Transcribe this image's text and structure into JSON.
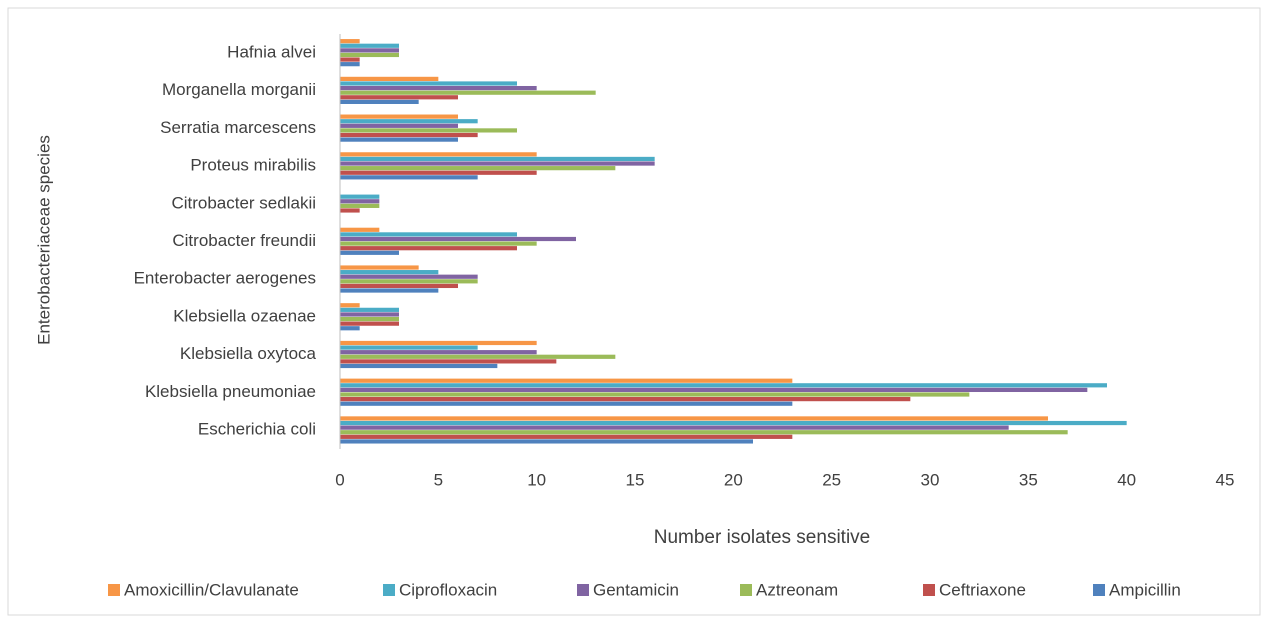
{
  "chart_data": {
    "type": "hbar",
    "xlabel": "Number isolates sensitive",
    "ylabel": "Enterobacteriaceae species",
    "categories": [
      "Escherichia coli",
      "Klebsiella pneumoniae",
      "Klebsiella oxytoca",
      "Klebsiella ozaenae",
      "Enterobacter aerogenes",
      "Citrobacter freundii",
      "Citrobacter sedlakii",
      "Proteus mirabilis",
      "Serratia marcescens",
      "Morganella morganii",
      "Hafnia alvei"
    ],
    "series": [
      {
        "name": "Amoxicillin/Clavulanate",
        "color": "#f79646",
        "values": [
          36,
          23,
          10,
          1,
          4,
          2,
          0,
          10,
          6,
          5,
          1
        ]
      },
      {
        "name": "Ciprofloxacin",
        "color": "#4bacc6",
        "values": [
          40,
          39,
          7,
          3,
          5,
          9,
          2,
          16,
          7,
          9,
          3
        ]
      },
      {
        "name": "Gentamicin",
        "color": "#8064a2",
        "values": [
          34,
          38,
          10,
          3,
          7,
          12,
          2,
          16,
          6,
          10,
          3
        ]
      },
      {
        "name": "Aztreonam",
        "color": "#9bbb59",
        "values": [
          37,
          32,
          14,
          3,
          7,
          10,
          2,
          14,
          9,
          13,
          3
        ]
      },
      {
        "name": "Ceftriaxone",
        "color": "#c0504d",
        "values": [
          23,
          29,
          11,
          3,
          6,
          9,
          1,
          10,
          7,
          6,
          1
        ]
      },
      {
        "name": "Ampicillin",
        "color": "#4f81bd",
        "values": [
          21,
          23,
          8,
          1,
          5,
          3,
          0,
          7,
          6,
          4,
          1
        ]
      }
    ],
    "xlim": [
      0,
      45
    ],
    "xticks": [
      0,
      5,
      10,
      15,
      20,
      25,
      30,
      35,
      40,
      45
    ],
    "legend": "bottom"
  }
}
